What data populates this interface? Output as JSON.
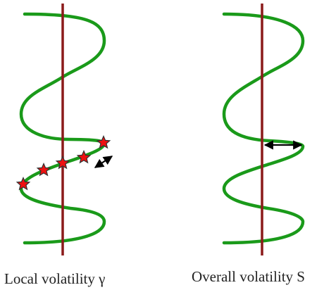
{
  "captions": {
    "left": "Local volatility γ",
    "right": "Overall volatility S"
  },
  "colors": {
    "wave": "#1a9a1a",
    "axis": "#8b1a1a",
    "star_fill": "#ee1111",
    "star_stroke": "#333333",
    "arrow": "#000000"
  },
  "icons": {
    "star": "star-icon",
    "double_arrow": "double-arrow-icon"
  }
}
